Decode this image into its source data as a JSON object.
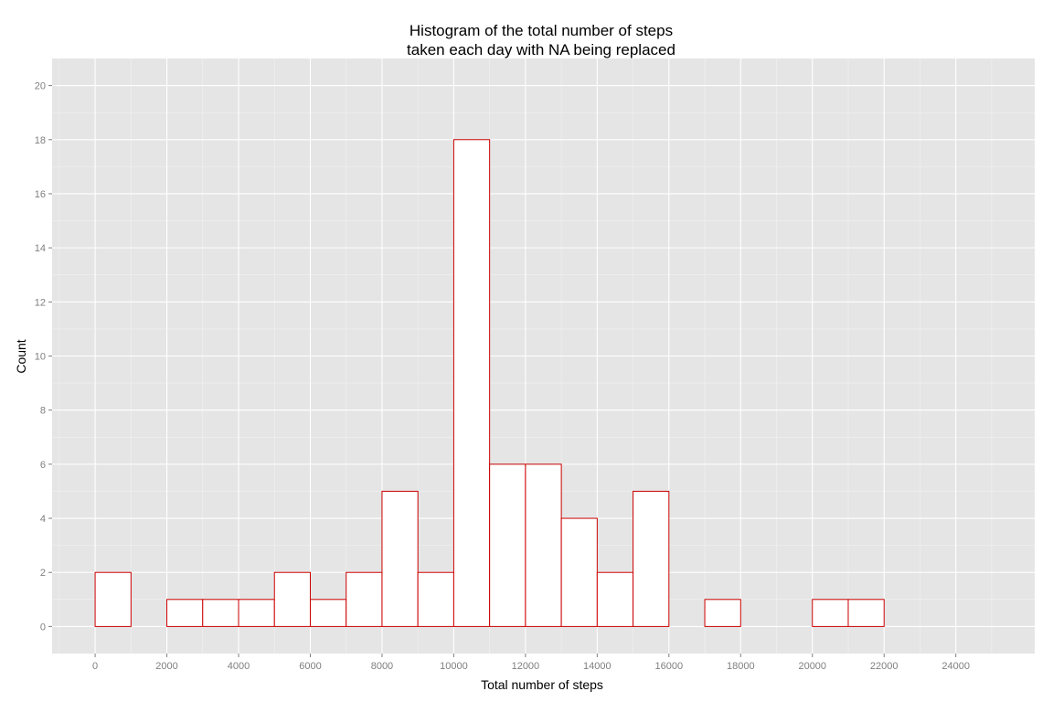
{
  "chart_data": {
    "type": "bar",
    "title": "Histogram of the total number of steps",
    "subtitle": "taken each day with NA being replaced",
    "xlabel": "Total number of steps",
    "ylabel": "Count",
    "xlim": [
      -1200,
      26200
    ],
    "ylim": [
      -1,
      21
    ],
    "xticks": [
      "0",
      "2000",
      "4000",
      "6000",
      "8000",
      "10000",
      "12000",
      "14000",
      "16000",
      "18000",
      "20000",
      "22000",
      "24000"
    ],
    "yticks": [
      "0",
      "2",
      "4",
      "6",
      "8",
      "10",
      "12",
      "14",
      "16",
      "18",
      "20"
    ],
    "bin_width": 1000,
    "bin_starts": [
      0,
      1000,
      2000,
      3000,
      4000,
      5000,
      6000,
      7000,
      8000,
      9000,
      10000,
      11000,
      12000,
      13000,
      14000,
      15000,
      16000,
      17000,
      18000,
      19000,
      20000,
      21000,
      22000,
      23000,
      24000
    ],
    "values": [
      2,
      0,
      1,
      1,
      1,
      2,
      1,
      2,
      5,
      2,
      18,
      6,
      6,
      4,
      2,
      5,
      0,
      1,
      0,
      0,
      1,
      1,
      0,
      0,
      0
    ],
    "grid": true,
    "colors": {
      "panel": "#e5e5e5",
      "grid_major": "#ffffff",
      "bar_fill": "#ffffff",
      "bar_outline": "#cc0000"
    }
  }
}
